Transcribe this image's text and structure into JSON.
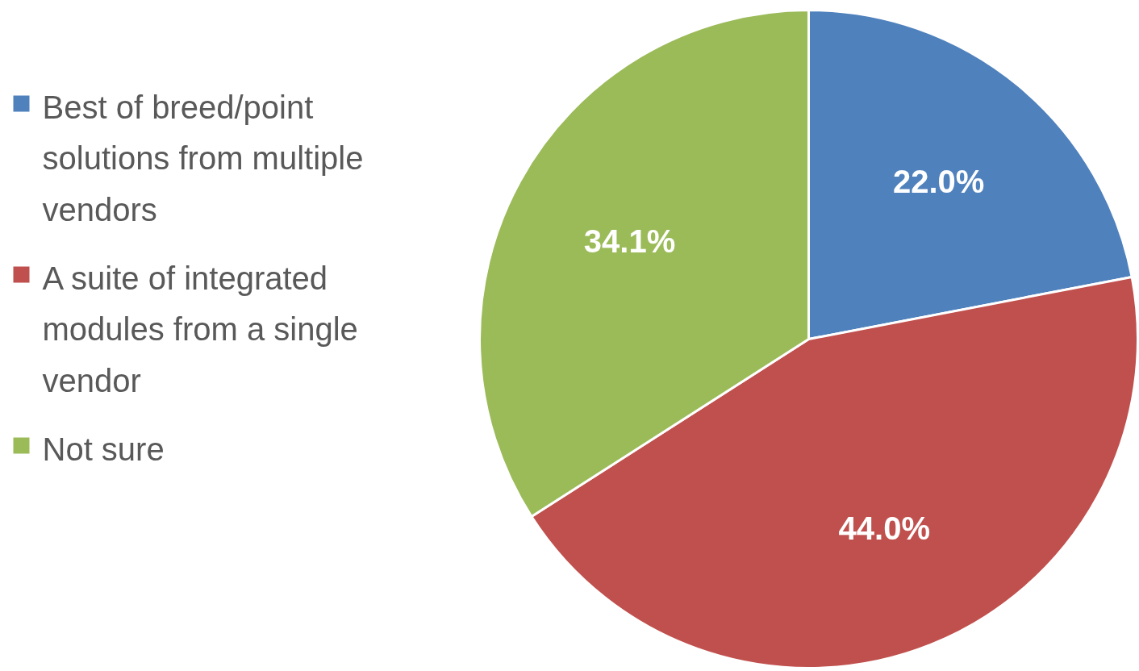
{
  "chart_data": {
    "type": "pie",
    "categories": [
      "Best of breed/point solutions from multiple vendors",
      "A suite of integrated modules from a single vendor",
      "Not sure"
    ],
    "values": [
      22.0,
      44.0,
      34.1
    ],
    "colors": [
      "#4f81bd",
      "#c0504d",
      "#9bbb59"
    ],
    "value_labels": [
      "22.0%",
      "44.0%",
      "34.1%"
    ],
    "legend": "left"
  }
}
